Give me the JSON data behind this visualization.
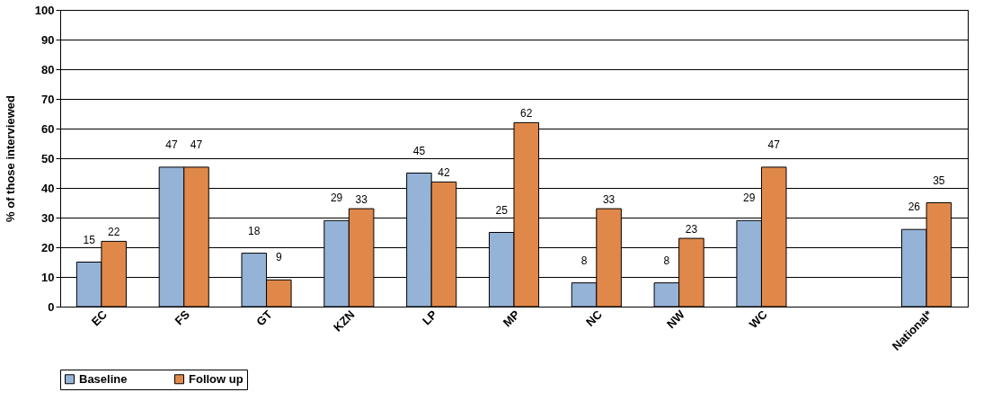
{
  "chart_data": {
    "type": "bar",
    "ylabel": "% of those interviewed",
    "categories": [
      "EC",
      "FS",
      "GT",
      "KZN",
      "LP",
      "MP",
      "NC",
      "NW",
      "WC",
      null,
      "National*"
    ],
    "series": [
      {
        "name": "Baseline",
        "color": "#95b3d7",
        "values": [
          15,
          47,
          18,
          29,
          45,
          25,
          8,
          8,
          29,
          null,
          26
        ]
      },
      {
        "name": "Follow up",
        "color": "#e0884a",
        "values": [
          22,
          47,
          9,
          33,
          42,
          62,
          33,
          23,
          47,
          null,
          35
        ]
      }
    ],
    "ylim": [
      0,
      100
    ],
    "yticks": [
      0,
      10,
      20,
      30,
      40,
      50,
      60,
      70,
      80,
      90,
      100
    ],
    "grid": "y",
    "legend": "bottom",
    "data_labels": true
  }
}
